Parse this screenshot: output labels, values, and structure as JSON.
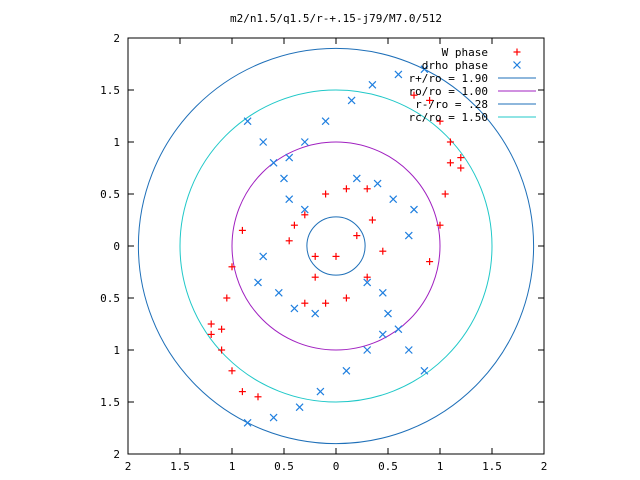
{
  "chart_data": {
    "type": "scatter",
    "title": "m2/n1.5/q1.5/r-+.15-j79/M7.0/512",
    "xlabel": "",
    "ylabel": "",
    "xlim": [
      -2,
      2
    ],
    "ylim": [
      -2,
      2
    ],
    "grid": false,
    "legend_position": "top-right",
    "x_ticks": [
      -2,
      -1.5,
      -1,
      -0.5,
      0,
      0.5,
      1,
      1.5,
      2
    ],
    "y_ticks": [
      -2,
      -1.5,
      -1,
      -0.5,
      0,
      0.5,
      1,
      1.5,
      2
    ],
    "x_tick_labels": [
      "2",
      "1.5",
      "1",
      "0.5",
      "0",
      "0.5",
      "1",
      "1.5",
      "2"
    ],
    "y_tick_labels": [
      "2",
      "1.5",
      "1",
      "0.5",
      "0",
      "0.5",
      "1",
      "1.5",
      "2"
    ],
    "series": [
      {
        "name": "W phase",
        "marker": "plus",
        "color": "#ff0000",
        "points": [
          [
            0.75,
            1.45
          ],
          [
            0.9,
            1.4
          ],
          [
            1.0,
            1.2
          ],
          [
            1.1,
            1.0
          ],
          [
            1.2,
            0.85
          ],
          [
            1.2,
            0.75
          ],
          [
            1.1,
            0.8
          ],
          [
            1.05,
            0.5
          ],
          [
            1.0,
            0.2
          ],
          [
            0.9,
            -0.15
          ],
          [
            -0.75,
            -1.45
          ],
          [
            -0.9,
            -1.4
          ],
          [
            -1.0,
            -1.2
          ],
          [
            -1.1,
            -1.0
          ],
          [
            -1.2,
            -0.85
          ],
          [
            -1.2,
            -0.75
          ],
          [
            -1.1,
            -0.8
          ],
          [
            -1.05,
            -0.5
          ],
          [
            -1.0,
            -0.2
          ],
          [
            -0.9,
            0.15
          ],
          [
            0.3,
            0.55
          ],
          [
            0.1,
            0.55
          ],
          [
            -0.1,
            0.5
          ],
          [
            -0.3,
            0.3
          ],
          [
            -0.45,
            0.05
          ],
          [
            -0.3,
            -0.55
          ],
          [
            -0.1,
            -0.55
          ],
          [
            0.1,
            -0.5
          ],
          [
            0.3,
            -0.3
          ],
          [
            0.45,
            -0.05
          ],
          [
            -0.4,
            0.2
          ],
          [
            -0.2,
            -0.3
          ],
          [
            0.0,
            -0.1
          ],
          [
            0.35,
            0.25
          ],
          [
            0.2,
            0.1
          ],
          [
            -0.2,
            -0.1
          ]
        ]
      },
      {
        "name": "drho phase",
        "marker": "cross",
        "color": "#1f7fdf",
        "points": [
          [
            0.85,
            1.7
          ],
          [
            0.6,
            1.65
          ],
          [
            0.35,
            1.55
          ],
          [
            0.15,
            1.4
          ],
          [
            -0.1,
            1.2
          ],
          [
            -0.3,
            1.0
          ],
          [
            -0.45,
            0.85
          ],
          [
            -0.5,
            0.65
          ],
          [
            -0.45,
            0.45
          ],
          [
            -0.3,
            0.35
          ],
          [
            -0.85,
            -1.7
          ],
          [
            -0.6,
            -1.65
          ],
          [
            -0.35,
            -1.55
          ],
          [
            -0.15,
            -1.4
          ],
          [
            0.1,
            -1.2
          ],
          [
            0.3,
            -1.0
          ],
          [
            0.45,
            -0.85
          ],
          [
            0.5,
            -0.65
          ],
          [
            0.45,
            -0.45
          ],
          [
            0.3,
            -0.35
          ],
          [
            0.6,
            -0.8
          ],
          [
            0.7,
            -1.0
          ],
          [
            0.85,
            -1.2
          ],
          [
            -0.6,
            0.8
          ],
          [
            -0.7,
            1.0
          ],
          [
            -0.85,
            1.2
          ],
          [
            0.75,
            0.35
          ],
          [
            0.7,
            0.1
          ],
          [
            -0.75,
            -0.35
          ],
          [
            -0.7,
            -0.1
          ],
          [
            0.4,
            0.6
          ],
          [
            0.2,
            0.65
          ],
          [
            -0.4,
            -0.6
          ],
          [
            -0.2,
            -0.65
          ],
          [
            0.55,
            0.45
          ],
          [
            -0.55,
            -0.45
          ]
        ]
      }
    ],
    "circles": [
      {
        "name": "r+/ro = 1.90",
        "r": 1.9,
        "color": "#1e6fb8"
      },
      {
        "name": "ro/ro = 1.00",
        "r": 1.0,
        "color": "#a020c0"
      },
      {
        "name": "r-/ro = .28",
        "r": 0.28,
        "color": "#1e6fb8"
      },
      {
        "name": "rc/ro = 1.50",
        "r": 1.5,
        "color": "#20c8c8"
      }
    ]
  }
}
